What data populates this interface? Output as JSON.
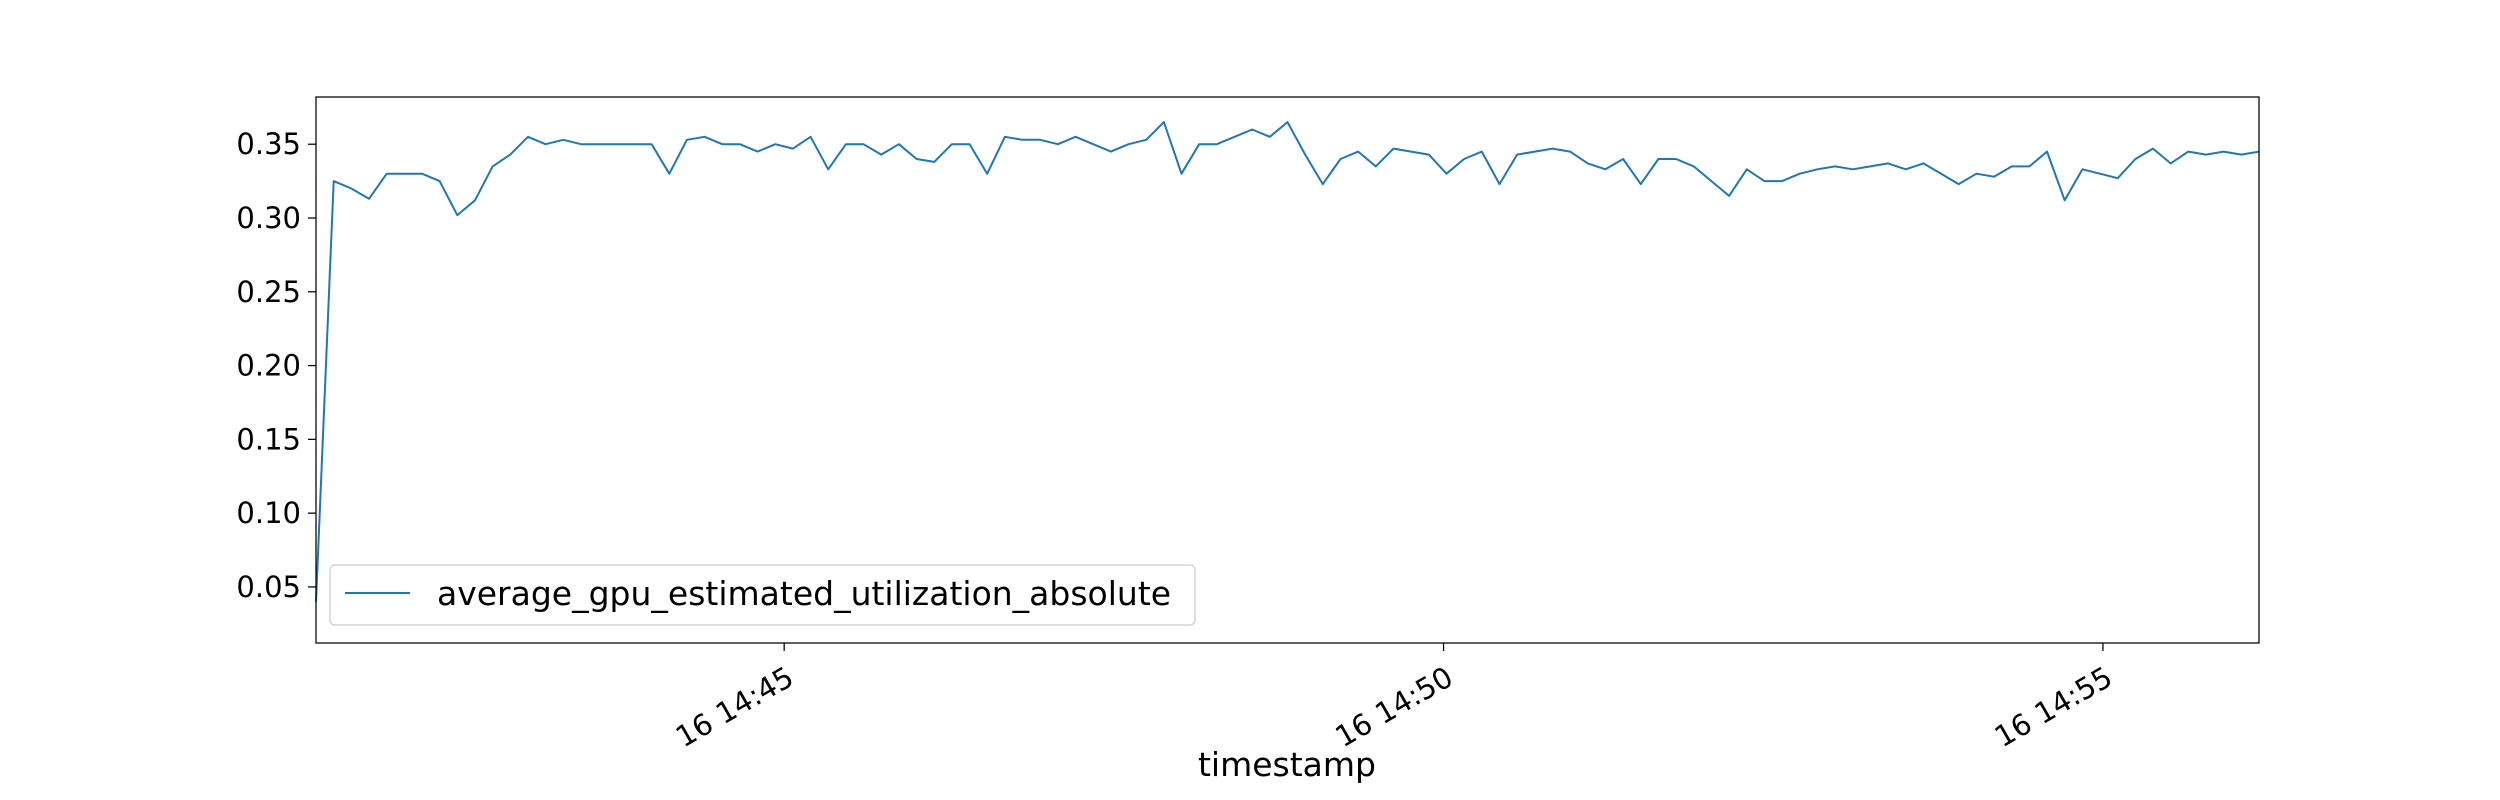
{
  "chart_data": {
    "type": "line",
    "title": "",
    "xlabel": "timestamp",
    "ylabel": "",
    "x_start": "16 14:41:27",
    "x_end": "16 14:56:11",
    "xlim": [
      "16 14:41:27",
      "16 14:56:11"
    ],
    "ylim": [
      0.012,
      0.382
    ],
    "yticks": [
      0.05,
      0.1,
      0.15,
      0.2,
      0.25,
      0.3,
      0.35
    ],
    "ytick_labels": [
      "0.05",
      "0.10",
      "0.15",
      "0.20",
      "0.25",
      "0.30",
      "0.35"
    ],
    "xticks": [
      {
        "time": "16 14:45",
        "label": "16 14:45"
      },
      {
        "time": "16 14:50",
        "label": "16 14:50"
      },
      {
        "time": "16 14:55",
        "label": "16 14:55"
      }
    ],
    "grid": false,
    "legend_position": "lower-left",
    "series": [
      {
        "name": "average_gpu_estimated_utilization_absolute",
        "color": "#1f77b4",
        "values": [
          0.04,
          0.325,
          0.32,
          0.313,
          0.33,
          0.33,
          0.33,
          0.325,
          0.302,
          0.312,
          0.335,
          0.343,
          0.355,
          0.35,
          0.353,
          0.35,
          0.35,
          0.35,
          0.35,
          0.35,
          0.33,
          0.353,
          0.355,
          0.35,
          0.35,
          0.345,
          0.35,
          0.347,
          0.355,
          0.333,
          0.35,
          0.35,
          0.343,
          0.35,
          0.34,
          0.338,
          0.35,
          0.35,
          0.33,
          0.355,
          0.353,
          0.353,
          0.35,
          0.355,
          0.35,
          0.345,
          0.35,
          0.353,
          0.365,
          0.33,
          0.35,
          0.35,
          0.355,
          0.36,
          0.355,
          0.365,
          0.343,
          0.323,
          0.34,
          0.345,
          0.335,
          0.347,
          0.345,
          0.343,
          0.33,
          0.34,
          0.345,
          0.323,
          0.343,
          0.345,
          0.347,
          0.345,
          0.337,
          0.333,
          0.34,
          0.323,
          0.34,
          0.34,
          0.335,
          0.325,
          0.315,
          0.333,
          0.325,
          0.325,
          0.33,
          0.333,
          0.335,
          0.333,
          0.335,
          0.337,
          0.333,
          0.337,
          0.33,
          0.323,
          0.33,
          0.328,
          0.335,
          0.335,
          0.345,
          0.312,
          0.333,
          0.33,
          0.327,
          0.34,
          0.347,
          0.337,
          0.345,
          0.343,
          0.345,
          0.343,
          0.345
        ]
      }
    ]
  }
}
